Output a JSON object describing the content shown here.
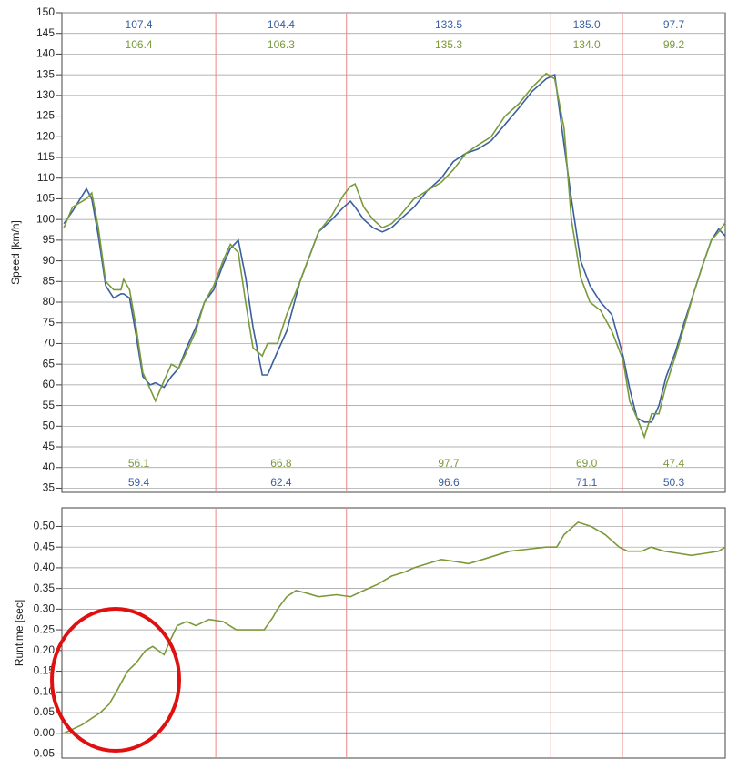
{
  "chart_data": [
    {
      "type": "line",
      "y_label": "Speed [km/h]",
      "grid": true,
      "xlim": [
        0,
        100
      ],
      "ylim": [
        34,
        150
      ],
      "yticks": [
        35,
        40,
        45,
        50,
        55,
        60,
        65,
        70,
        75,
        80,
        85,
        90,
        95,
        100,
        105,
        110,
        115,
        120,
        125,
        130,
        135,
        140,
        145,
        150
      ],
      "series": [
        {
          "color": "#3a5fa0",
          "x": [
            0.3,
            1.6,
            3.7,
            4.5,
            5.5,
            6.6,
            7.8,
            8.9,
            9.3,
            10.2,
            11.2,
            12.2,
            13.3,
            14.1,
            15.4,
            16.5,
            17.6,
            18.8,
            20.2,
            21.5,
            22.9,
            24.3,
            25.4,
            26.6,
            27.7,
            28.8,
            30.2,
            31.0,
            32.5,
            33.9,
            35.9,
            38.7,
            40.7,
            42.5,
            43.5,
            44.2,
            45.5,
            46.9,
            48.3,
            49.7,
            51.0,
            53.1,
            55.1,
            57.2,
            59.0,
            60.9,
            62.7,
            64.7,
            66.8,
            68.9,
            70.9,
            73.0,
            74.3,
            75.7,
            76.8,
            78.2,
            79.6,
            81.2,
            82.9,
            84.6,
            85.6,
            86.7,
            87.8,
            88.9,
            90.0,
            91.1,
            92.5,
            93.8,
            95.2,
            96.6,
            97.9,
            99.0,
            100
          ],
          "values": [
            99,
            102,
            107.4,
            105,
            96,
            84,
            81,
            82,
            82,
            81,
            72,
            62,
            60,
            60.5,
            59.4,
            62,
            64,
            69,
            74,
            80,
            83,
            89,
            93,
            95,
            86,
            74,
            62.4,
            62.4,
            68,
            73,
            85,
            97,
            100,
            103,
            104.4,
            103,
            100,
            98,
            97,
            98,
            100,
            103,
            107,
            110,
            114,
            116,
            117,
            119,
            123,
            127,
            131,
            134,
            135.0,
            118,
            105,
            90,
            84,
            80,
            77,
            67,
            59,
            52,
            51,
            51,
            55,
            62,
            68,
            75,
            82,
            89,
            95,
            97.7,
            96
          ],
          "sector_max": {
            "values": [
              107.4,
              104.4,
              133.5,
              135.0,
              97.7
            ],
            "value_labels": [
              "107.4",
              "104.4",
              "133.5",
              "135.0",
              "97.7"
            ]
          },
          "sector_min": {
            "values": [
              59.4,
              62.4,
              96.6,
              71.1,
              50.3
            ],
            "value_labels": [
              "59.4",
              "62.4",
              "96.6",
              "71.1",
              "50.3"
            ]
          }
        },
        {
          "color": "#7a9a3a",
          "x": [
            0.3,
            1.6,
            3.7,
            4.5,
            5.5,
            6.6,
            7.8,
            8.9,
            9.3,
            10.2,
            11.2,
            12.2,
            13.3,
            14.1,
            15.4,
            16.5,
            17.6,
            18.8,
            20.2,
            21.5,
            22.9,
            24.3,
            25.4,
            26.6,
            27.7,
            28.8,
            30.2,
            31.0,
            32.5,
            33.9,
            35.9,
            38.7,
            40.7,
            42.5,
            43.5,
            44.2,
            45.5,
            46.9,
            48.3,
            49.7,
            51.0,
            53.1,
            55.1,
            57.2,
            59.0,
            60.9,
            62.7,
            64.7,
            66.8,
            68.9,
            70.9,
            73.0,
            74.3,
            75.7,
            76.8,
            78.2,
            79.6,
            81.2,
            82.9,
            84.6,
            85.6,
            86.7,
            87.8,
            88.9,
            90.0,
            91.1,
            92.5,
            93.8,
            95.2,
            96.6,
            97.9,
            99.0,
            100
          ],
          "values": [
            98,
            103,
            105,
            106.4,
            98,
            85,
            83,
            83,
            85.5,
            83,
            74,
            63,
            59,
            56.1,
            61,
            65,
            64,
            68,
            73,
            80,
            84,
            90,
            94,
            92,
            80,
            69,
            67,
            70,
            70,
            77,
            85,
            97,
            101,
            106,
            108,
            108.6,
            103,
            100,
            98,
            99,
            101,
            105,
            107,
            109,
            112,
            116,
            118,
            120,
            125,
            128,
            132,
            135.3,
            134,
            122,
            100,
            86,
            80,
            78,
            73,
            66,
            56,
            52,
            47.4,
            53,
            53,
            60,
            67,
            74,
            82,
            89,
            95,
            97,
            99.2
          ],
          "sector_max": {
            "values": [
              106.4,
              106.3,
              135.3,
              134.0,
              99.2
            ],
            "value_labels": [
              "106.4",
              "106.3",
              "135.3",
              "134.0",
              "99.2"
            ]
          },
          "sector_min": {
            "values": [
              56.1,
              66.8,
              97.7,
              69.0,
              47.4
            ],
            "value_labels": [
              "56.1",
              "66.8",
              "97.7",
              "69.0",
              "47.4"
            ]
          }
        }
      ]
    },
    {
      "type": "line",
      "y_label": "Runtime [sec]",
      "grid": true,
      "xlim": [
        0,
        100
      ],
      "ylim": [
        -0.06,
        0.545
      ],
      "yticks": [
        -0.05,
        {
          "value": 0,
          "label": "0.00"
        },
        0.05,
        {
          "value": 0.1,
          "label": "0.10"
        },
        0.15,
        {
          "value": 0.2,
          "label": "0.20"
        },
        0.25,
        {
          "value": 0.3,
          "label": "0.30"
        },
        0.35,
        {
          "value": 0.4,
          "label": "0.40"
        },
        0.45,
        {
          "value": 0.5,
          "label": "0.50"
        }
      ],
      "series": [
        {
          "color": "#3a5fa0",
          "x": [
            0,
            100
          ],
          "values": [
            0,
            0
          ]
        },
        {
          "color": "#7a9a3a",
          "x": [
            0.3,
            3.0,
            5.8,
            7.1,
            8.2,
            9.9,
            11.2,
            12.6,
            13.7,
            15.4,
            16.2,
            17.4,
            18.8,
            20.2,
            22.2,
            24.3,
            26.3,
            30.5,
            31.8,
            32.5,
            33.9,
            35.3,
            36.6,
            38.7,
            41.4,
            43.5,
            45.5,
            47.6,
            49.7,
            51.7,
            53.1,
            55.1,
            57.2,
            59.3,
            61.3,
            63.4,
            65.4,
            67.5,
            70.2,
            73.0,
            74.6,
            75.7,
            77.8,
            79.8,
            81.9,
            84.0,
            85.3,
            87.4,
            88.8,
            90.8,
            92.9,
            94.9,
            97.0,
            99.0,
            100
          ],
          "values": [
            0,
            0.02,
            0.05,
            0.07,
            0.1,
            0.15,
            0.17,
            0.2,
            0.21,
            0.19,
            0.22,
            0.26,
            0.27,
            0.26,
            0.275,
            0.27,
            0.25,
            0.25,
            0.28,
            0.3,
            0.33,
            0.345,
            0.34,
            0.33,
            0.335,
            0.33,
            0.345,
            0.36,
            0.38,
            0.39,
            0.4,
            0.41,
            0.42,
            0.415,
            0.41,
            0.42,
            0.43,
            0.44,
            0.445,
            0.45,
            0.45,
            0.48,
            0.51,
            0.5,
            0.48,
            0.45,
            0.44,
            0.44,
            0.45,
            0.44,
            0.435,
            0.43,
            0.435,
            0.44,
            0.45
          ]
        }
      ]
    }
  ]
}
